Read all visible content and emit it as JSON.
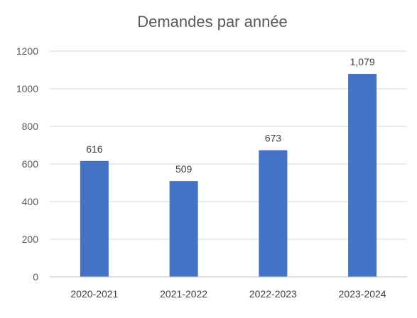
{
  "chart_data": {
    "type": "bar",
    "title": "Demandes par année",
    "xlabel": "",
    "ylabel": "",
    "categories": [
      "2020-2021",
      "2021-2022",
      "2022-2023",
      "2023-2024"
    ],
    "values": [
      616,
      509,
      673,
      1079
    ],
    "data_labels": [
      "616",
      "509",
      "673",
      "1,079"
    ],
    "ylim": [
      0,
      1200
    ],
    "yticks": [
      0,
      200,
      400,
      600,
      800,
      1000,
      1200
    ],
    "ytick_labels": [
      "0",
      "200",
      "400",
      "600",
      "800",
      "1000",
      "1200"
    ],
    "grid": true,
    "legend": "none",
    "bar_color": "#4472c4"
  }
}
